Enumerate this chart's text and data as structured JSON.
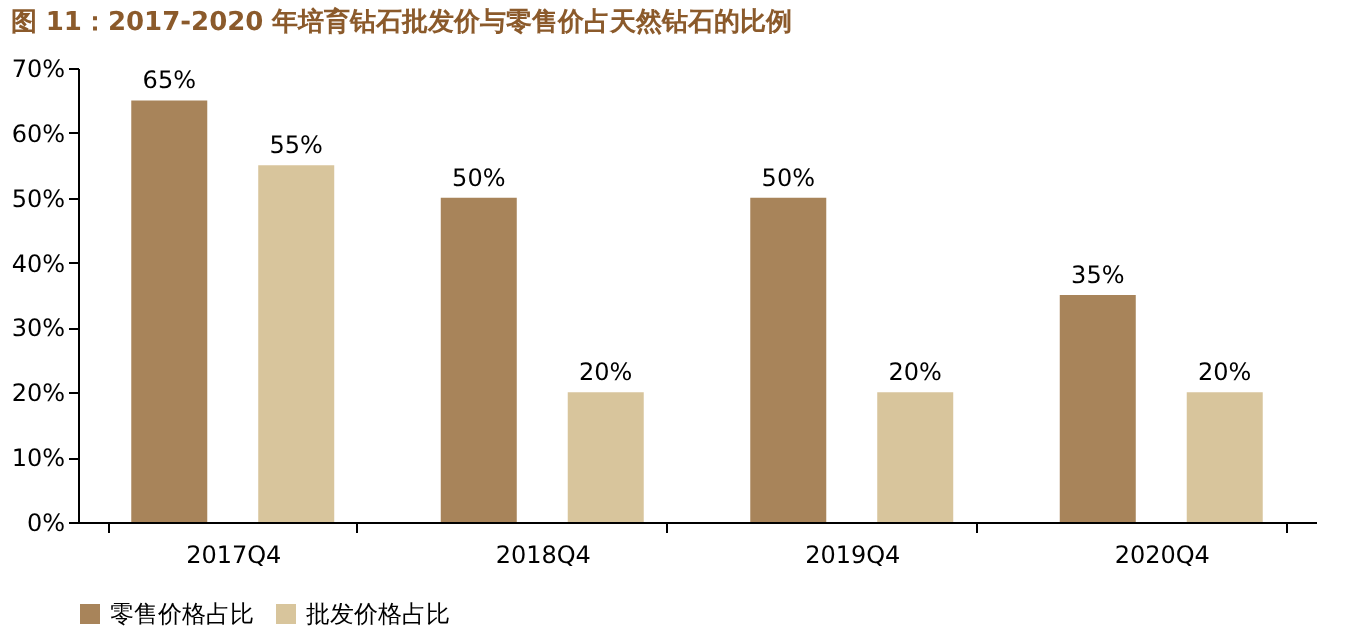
{
  "chart_data": {
    "type": "bar",
    "title": "图 11：2017-2020 年培育钻石批发价与零售价占天然钻石的比例",
    "categories": [
      "2017Q4",
      "2018Q4",
      "2019Q4",
      "2020Q4"
    ],
    "series": [
      {
        "name": "零售价格占比",
        "color": "#a8845a",
        "values": [
          65,
          50,
          50,
          35
        ],
        "value_labels": [
          "65%",
          "50%",
          "50%",
          "35%"
        ]
      },
      {
        "name": "批发价格占比",
        "color": "#d8c59c",
        "values": [
          55,
          20,
          20,
          20
        ],
        "value_labels": [
          "55%",
          "20%",
          "20%",
          "20%"
        ]
      }
    ],
    "ylim": [
      0,
      70
    ],
    "yticks": [
      {
        "value": 0,
        "label": "0%"
      },
      {
        "value": 10,
        "label": "10%"
      },
      {
        "value": 20,
        "label": "20%"
      },
      {
        "value": 30,
        "label": "30%"
      },
      {
        "value": 40,
        "label": "40%"
      },
      {
        "value": 50,
        "label": "50%"
      },
      {
        "value": 60,
        "label": "60%"
      },
      {
        "value": 70,
        "label": "70%"
      }
    ],
    "grid": false,
    "legend": "bottom"
  }
}
